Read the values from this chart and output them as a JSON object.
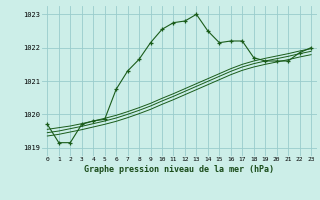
{
  "title": "Graphe pression niveau de la mer (hPa)",
  "bg_color": "#cceee8",
  "grid_color": "#99cccc",
  "line_color": "#1a5c1a",
  "xlim": [
    -0.5,
    23.5
  ],
  "ylim": [
    1018.75,
    1023.25
  ],
  "yticks": [
    1019,
    1020,
    1021,
    1022,
    1023
  ],
  "xticks": [
    0,
    1,
    2,
    3,
    4,
    5,
    6,
    7,
    8,
    9,
    10,
    11,
    12,
    13,
    14,
    15,
    16,
    17,
    18,
    19,
    20,
    21,
    22,
    23
  ],
  "main_series": [
    1019.7,
    1019.15,
    1019.15,
    1019.7,
    1019.8,
    1019.85,
    1020.75,
    1021.3,
    1021.65,
    1022.15,
    1022.55,
    1022.75,
    1022.8,
    1023.0,
    1022.5,
    1022.15,
    1022.2,
    1022.2,
    1021.7,
    1021.6,
    1021.6,
    1021.6,
    1021.85,
    1022.0
  ],
  "trend_series1": [
    1019.55,
    1019.6,
    1019.65,
    1019.72,
    1019.8,
    1019.88,
    1019.97,
    1020.08,
    1020.2,
    1020.33,
    1020.48,
    1020.62,
    1020.77,
    1020.92,
    1021.07,
    1021.22,
    1021.37,
    1021.5,
    1021.6,
    1021.68,
    1021.75,
    1021.82,
    1021.9,
    1021.97
  ],
  "trend_series2": [
    1019.45,
    1019.5,
    1019.57,
    1019.64,
    1019.72,
    1019.8,
    1019.89,
    1020.0,
    1020.12,
    1020.25,
    1020.4,
    1020.54,
    1020.69,
    1020.84,
    1020.99,
    1021.14,
    1021.29,
    1021.42,
    1021.52,
    1021.6,
    1021.67,
    1021.74,
    1021.82,
    1021.89
  ],
  "trend_series3": [
    1019.35,
    1019.4,
    1019.47,
    1019.54,
    1019.62,
    1019.7,
    1019.79,
    1019.9,
    1020.02,
    1020.15,
    1020.3,
    1020.44,
    1020.59,
    1020.74,
    1020.89,
    1021.04,
    1021.19,
    1021.32,
    1021.42,
    1021.5,
    1021.57,
    1021.64,
    1021.72,
    1021.79
  ]
}
